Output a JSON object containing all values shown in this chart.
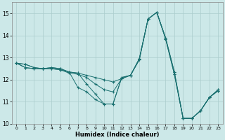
{
  "title": "",
  "xlabel": "Humidex (Indice chaleur)",
  "background_color": "#cce8e8",
  "grid_color": "#aacccc",
  "line_color": "#1a7070",
  "xlim": [
    -0.5,
    23.5
  ],
  "ylim": [
    10,
    15.5
  ],
  "yticks": [
    10,
    11,
    12,
    13,
    14,
    15
  ],
  "xticks": [
    0,
    1,
    2,
    3,
    4,
    5,
    6,
    7,
    8,
    9,
    10,
    11,
    12,
    13,
    14,
    15,
    16,
    17,
    18,
    19,
    20,
    21,
    22,
    23
  ],
  "lines": [
    [
      12.75,
      12.7,
      12.55,
      12.5,
      12.55,
      12.5,
      12.35,
      11.65,
      11.45,
      11.1,
      10.9,
      10.9,
      12.1,
      12.2,
      12.95,
      14.75,
      15.05,
      13.9,
      12.35,
      10.25,
      10.25,
      10.6,
      11.2,
      11.55
    ],
    [
      12.75,
      12.7,
      12.55,
      12.5,
      12.55,
      12.5,
      12.35,
      12.3,
      11.8,
      11.35,
      10.9,
      10.9,
      12.1,
      12.2,
      12.95,
      14.75,
      15.05,
      13.9,
      12.35,
      10.25,
      10.25,
      10.6,
      11.2,
      11.55
    ],
    [
      12.75,
      12.55,
      12.5,
      12.5,
      12.5,
      12.45,
      12.3,
      12.25,
      12.1,
      11.8,
      11.55,
      11.45,
      12.05,
      12.2,
      12.9,
      14.75,
      15.05,
      13.85,
      12.25,
      10.25,
      10.25,
      10.6,
      11.2,
      11.5
    ],
    [
      12.75,
      12.55,
      12.5,
      12.5,
      12.5,
      12.45,
      12.35,
      12.3,
      12.2,
      12.1,
      12.0,
      11.9,
      12.05,
      12.2,
      12.9,
      14.75,
      15.05,
      13.85,
      12.25,
      10.25,
      10.25,
      10.6,
      11.2,
      11.5
    ]
  ]
}
